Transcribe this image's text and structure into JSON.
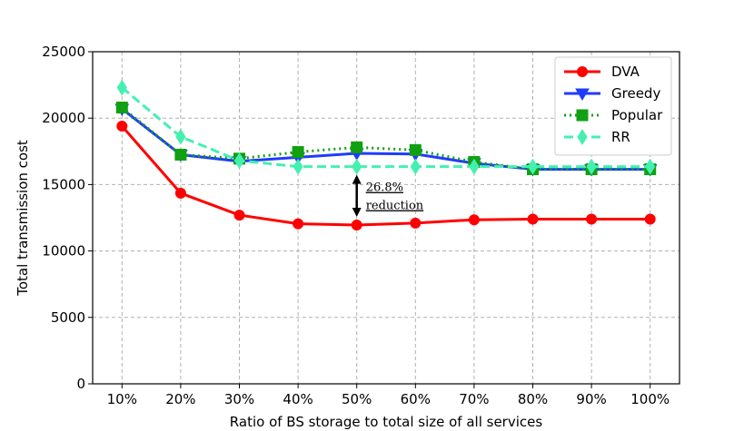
{
  "chart_data": {
    "type": "line",
    "title": "",
    "xlabel": "Ratio of BS storage to total size of all services",
    "ylabel": "Total transmission cost",
    "categories": [
      "10%",
      "20%",
      "30%",
      "40%",
      "50%",
      "60%",
      "70%",
      "80%",
      "90%",
      "100%"
    ],
    "ylim": [
      0,
      25000
    ],
    "yticks": [
      0,
      5000,
      10000,
      15000,
      20000,
      25000
    ],
    "grid": true,
    "legend_position": "top-right",
    "series": [
      {
        "name": "DVA",
        "color": "#ff0000",
        "marker": "circle",
        "dash": "solid",
        "values": [
          19400,
          14350,
          12700,
          12050,
          11950,
          12100,
          12350,
          12400,
          12400,
          12400
        ]
      },
      {
        "name": "Greedy",
        "color": "#1f3bff",
        "marker": "triangle-down",
        "dash": "solid",
        "values": [
          20700,
          17250,
          16750,
          17050,
          17350,
          17300,
          16600,
          16150,
          16150,
          16150
        ]
      },
      {
        "name": "Popular",
        "color": "#11a011",
        "marker": "square",
        "dash": "dotted",
        "values": [
          20800,
          17250,
          16950,
          17450,
          17800,
          17600,
          16700,
          16150,
          16150,
          16150
        ]
      },
      {
        "name": "RR",
        "color": "#44f0b0",
        "marker": "diamond",
        "dash": "dashed",
        "values": [
          22300,
          18600,
          16800,
          16350,
          16350,
          16350,
          16350,
          16350,
          16350,
          16350
        ]
      }
    ],
    "annotation": {
      "category": "50%",
      "from": 16350,
      "to": 11950,
      "text_line1": "26.8%",
      "text_line2": "reduction"
    }
  }
}
